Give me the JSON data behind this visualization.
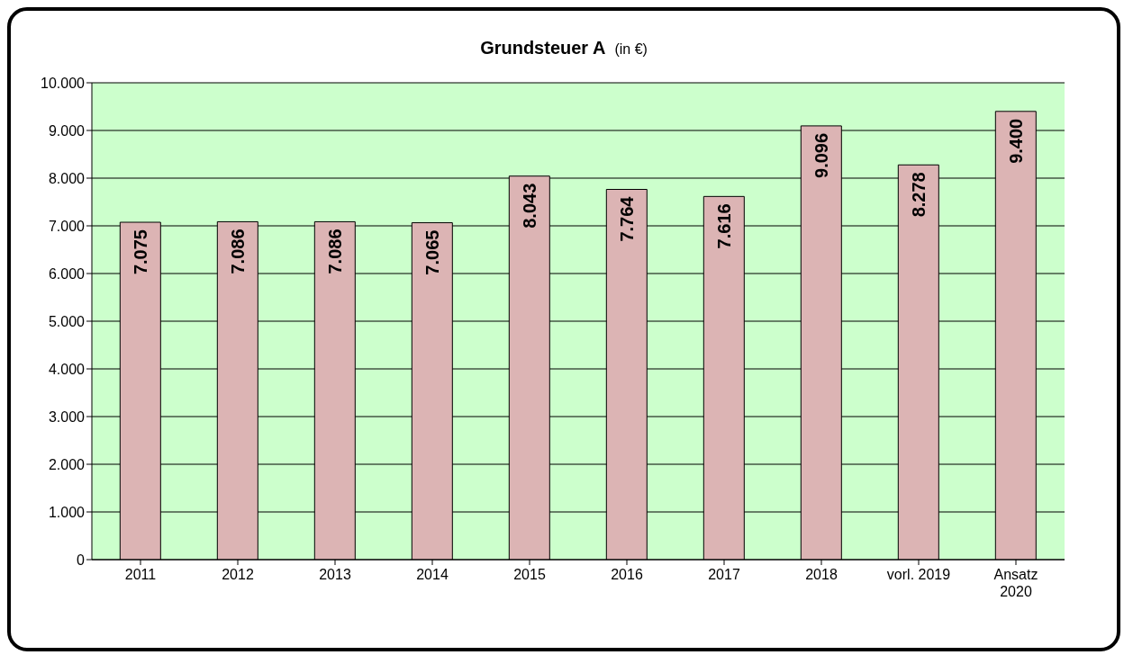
{
  "chart_data": {
    "type": "bar",
    "title": "Grundsteuer A",
    "subtitle": "(in €)",
    "categories": [
      "2011",
      "2012",
      "2013",
      "2014",
      "2015",
      "2016",
      "2017",
      "2018",
      "vorl. 2019",
      "Ansatz\n2020"
    ],
    "values": [
      7075,
      7086,
      7086,
      7065,
      8043,
      7764,
      7616,
      9096,
      8278,
      9400
    ],
    "value_labels": [
      "7.075",
      "7.086",
      "7.086",
      "7.065",
      "8.043",
      "7.764",
      "7.616",
      "9.096",
      "8.278",
      "9.400"
    ],
    "color": "#dcb4b4",
    "ylim": [
      0,
      10000
    ],
    "yticks": [
      {
        "value": 0,
        "label": "0"
      },
      {
        "value": 1000,
        "label": "1.000"
      },
      {
        "value": 2000,
        "label": "2.000"
      },
      {
        "value": 3000,
        "label": "3.000"
      },
      {
        "value": 4000,
        "label": "4.000"
      },
      {
        "value": 5000,
        "label": "5.000"
      },
      {
        "value": 6000,
        "label": "6.000"
      },
      {
        "value": 7000,
        "label": "7.000"
      },
      {
        "value": 8000,
        "label": "8.000"
      },
      {
        "value": 9000,
        "label": "9.000"
      },
      {
        "value": 10000,
        "label": "10.000"
      }
    ],
    "grid": "y",
    "legend": false
  }
}
